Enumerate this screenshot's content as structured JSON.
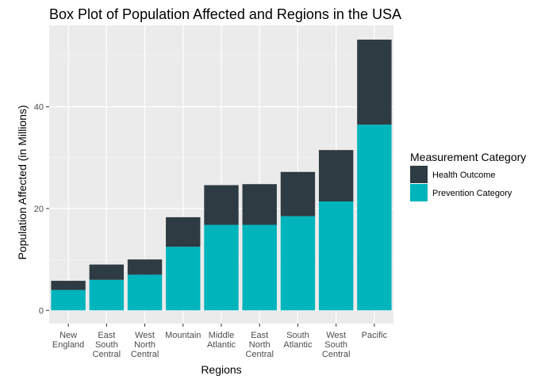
{
  "chart_data": {
    "type": "bar",
    "stacked": true,
    "title": "Box Plot of Population Affected and Regions in the USA",
    "xlabel": "Regions",
    "ylabel": "Population Affected (in Millions)",
    "ylim": [
      -2.6,
      56
    ],
    "yticks": [
      0,
      20,
      40
    ],
    "grid": true,
    "legend_position": "right",
    "legend_title": "Measurement Category",
    "categories": [
      [
        "New",
        "England"
      ],
      [
        "East",
        "South",
        "Central"
      ],
      [
        "West",
        "North",
        "Central"
      ],
      [
        "Mountain"
      ],
      [
        "Middle",
        "Atlantic"
      ],
      [
        "East",
        "North",
        "Central"
      ],
      [
        "South",
        "Atlantic"
      ],
      [
        "West",
        "South",
        "Central"
      ],
      [
        "Pacific"
      ]
    ],
    "series": [
      {
        "name": "Prevention Category",
        "color": "#00b4bc",
        "values": [
          4.0,
          6.0,
          7.0,
          12.5,
          16.8,
          16.8,
          18.5,
          21.4,
          36.5
        ]
      },
      {
        "name": "Health Outcome",
        "color": "#2f3b43",
        "values": [
          1.8,
          3.0,
          3.0,
          5.8,
          7.8,
          8.0,
          8.7,
          10.1,
          16.7
        ]
      }
    ],
    "legend_order": [
      1,
      0
    ]
  }
}
